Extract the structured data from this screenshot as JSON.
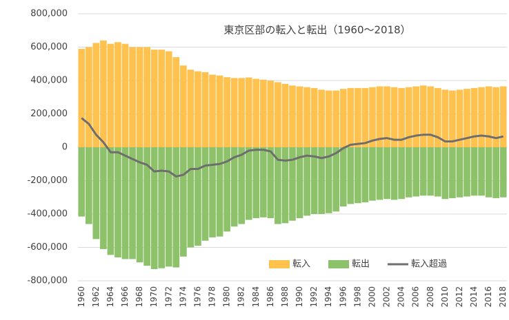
{
  "chart_data": {
    "type": "bar",
    "title": "東京区部の転入と転出（1960～2018）",
    "categories": [
      "1960",
      null,
      "1962",
      null,
      "1964",
      null,
      "1966",
      null,
      "1968",
      null,
      "1970",
      null,
      "1972",
      null,
      "1974",
      null,
      "1976",
      null,
      "1978",
      null,
      "1980",
      null,
      "1982",
      null,
      "1984",
      null,
      "1986",
      null,
      "1988",
      null,
      "1990",
      null,
      "1992",
      null,
      "1994",
      null,
      "1996",
      null,
      "1998",
      null,
      "2000",
      null,
      "2002",
      null,
      "2004",
      null,
      "2006",
      null,
      "2008",
      null,
      "2010",
      null,
      "2012",
      null,
      "2014",
      null,
      "2016",
      null,
      "2018"
    ],
    "series": [
      {
        "name": "転入",
        "type": "bar",
        "color": "#ffc24f",
        "values": [
          590000,
          600000,
          625000,
          640000,
          620000,
          630000,
          620000,
          600000,
          600000,
          600000,
          585000,
          585000,
          575000,
          540000,
          490000,
          465000,
          455000,
          450000,
          435000,
          430000,
          420000,
          415000,
          415000,
          418000,
          410000,
          405000,
          400000,
          390000,
          380000,
          370000,
          365000,
          360000,
          355000,
          345000,
          340000,
          340000,
          350000,
          355000,
          355000,
          355000,
          360000,
          365000,
          365000,
          360000,
          355000,
          360000,
          365000,
          370000,
          365000,
          355000,
          345000,
          340000,
          345000,
          350000,
          355000,
          360000,
          365000,
          360000,
          365000
        ]
      },
      {
        "name": "転出",
        "type": "bar",
        "color": "#8dc26a",
        "values": [
          -415000,
          -460000,
          -550000,
          -610000,
          -645000,
          -660000,
          -670000,
          -670000,
          -690000,
          -710000,
          -730000,
          -725000,
          -715000,
          -720000,
          -655000,
          -600000,
          -590000,
          -560000,
          -540000,
          -535000,
          -505000,
          -475000,
          -460000,
          -435000,
          -425000,
          -420000,
          -425000,
          -460000,
          -455000,
          -440000,
          -425000,
          -410000,
          -400000,
          -400000,
          -395000,
          -385000,
          -355000,
          -340000,
          -335000,
          -330000,
          -320000,
          -315000,
          -310000,
          -315000,
          -310000,
          -300000,
          -295000,
          -290000,
          -290000,
          -295000,
          -310000,
          -305000,
          -300000,
          -295000,
          -290000,
          -290000,
          -300000,
          -305000,
          -300000
        ]
      },
      {
        "name": "転入超過",
        "type": "line",
        "color": "#6e6e6e",
        "values": [
          175000,
          140000,
          75000,
          30000,
          -30000,
          -30000,
          -50000,
          -70000,
          -90000,
          -105000,
          -145000,
          -140000,
          -145000,
          -175000,
          -165000,
          -130000,
          -130000,
          -110000,
          -105000,
          -100000,
          -85000,
          -60000,
          -45000,
          -20000,
          -15000,
          -15000,
          -25000,
          -75000,
          -80000,
          -75000,
          -60000,
          -50000,
          -55000,
          -65000,
          -55000,
          -35000,
          -5000,
          15000,
          20000,
          25000,
          40000,
          50000,
          55000,
          45000,
          45000,
          60000,
          70000,
          75000,
          75000,
          60000,
          35000,
          35000,
          45000,
          55000,
          65000,
          70000,
          65000,
          55000,
          65000
        ]
      }
    ],
    "ylim": [
      -800000,
      800000
    ],
    "yticks": [
      {
        "value": -800000,
        "label": "-800,000"
      },
      {
        "value": -600000,
        "label": "-600,000"
      },
      {
        "value": -400000,
        "label": "-400,000"
      },
      {
        "value": -200000,
        "label": "-200,000"
      },
      0,
      {
        "value": 200000,
        "label": "200,000"
      },
      {
        "value": 400000,
        "label": "400,000"
      },
      {
        "value": 600000,
        "label": "600,000"
      },
      {
        "value": 800000,
        "label": "800,000"
      }
    ],
    "grid": true,
    "legend": "bottom-right"
  }
}
